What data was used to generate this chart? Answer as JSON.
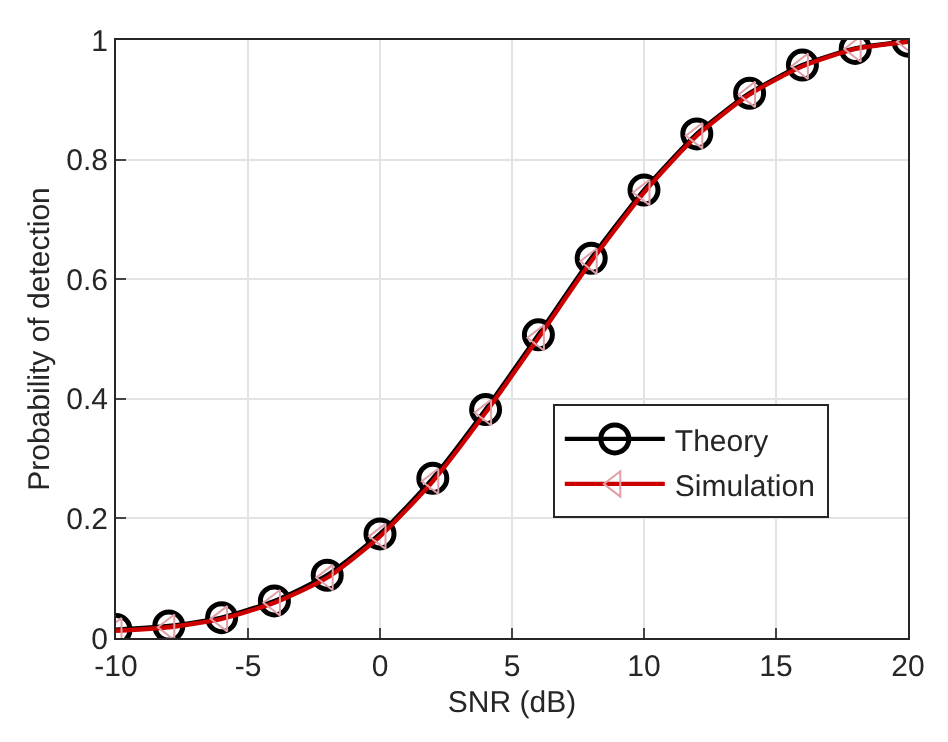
{
  "chart_data": {
    "type": "line",
    "xlabel": "SNR (dB)",
    "ylabel": "Probability of detection",
    "x": [
      -10,
      -8,
      -6,
      -4,
      -2,
      0,
      2,
      4,
      6,
      8,
      10,
      12,
      14,
      16,
      18,
      20
    ],
    "series": [
      {
        "name": "Theory",
        "color": "#000000",
        "marker": "circle",
        "values": [
          0.014,
          0.02,
          0.034,
          0.062,
          0.105,
          0.174,
          0.267,
          0.382,
          0.507,
          0.635,
          0.749,
          0.843,
          0.911,
          0.958,
          0.986,
          0.998
        ]
      },
      {
        "name": "Simulation",
        "color": "#cc0000",
        "marker": "triangle",
        "values": [
          0.012,
          0.018,
          0.032,
          0.059,
          0.101,
          0.17,
          0.262,
          0.377,
          0.502,
          0.63,
          0.745,
          0.84,
          0.909,
          0.956,
          0.985,
          0.997
        ]
      }
    ],
    "xlim": [
      -10,
      20
    ],
    "xticks": [
      -10,
      -5,
      0,
      5,
      10,
      15,
      20
    ],
    "ylim": [
      0,
      1
    ],
    "yticks": [
      0,
      0.2,
      0.4,
      0.6,
      0.8,
      1
    ],
    "grid": true,
    "legend": "right",
    "line_style": "solid"
  }
}
